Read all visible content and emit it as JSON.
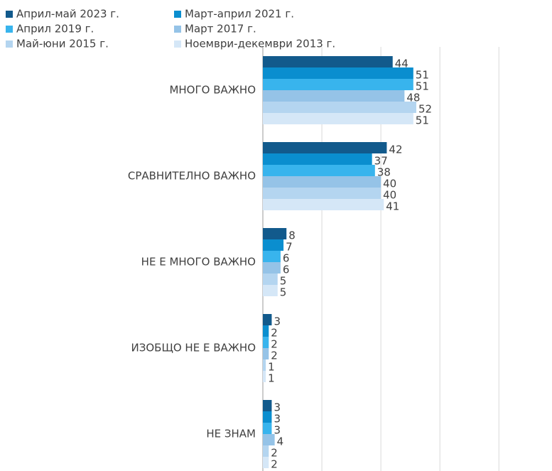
{
  "chart_data": {
    "type": "bar",
    "orientation": "horizontal",
    "categories": [
      "МНОГО ВАЖНО",
      "СРАВНИТЕЛНО ВАЖНО",
      "НЕ Е МНОГО ВАЖНО",
      "ИЗОБЩО НЕ Е ВАЖНО",
      "НЕ ЗНАМ"
    ],
    "series": [
      {
        "name": "Април-май 2023 г.",
        "color": "#125a8c",
        "values": [
          44,
          42,
          8,
          3,
          3
        ]
      },
      {
        "name": "Март-април 2021 г.",
        "color": "#0a8ecf",
        "values": [
          51,
          37,
          7,
          2,
          3
        ]
      },
      {
        "name": "Април 2019 г.",
        "color": "#38b4ed",
        "values": [
          51,
          38,
          6,
          2,
          3
        ]
      },
      {
        "name": "Март 2017 г.",
        "color": "#95c3e7",
        "values": [
          48,
          40,
          6,
          2,
          4
        ]
      },
      {
        "name": "Май-юни 2015 г.",
        "color": "#b4d5f0",
        "values": [
          52,
          40,
          5,
          1,
          2
        ]
      },
      {
        "name": "Ноември-декември 2013 г.",
        "color": "#d5e7f7",
        "values": [
          51,
          41,
          5,
          1,
          2
        ]
      }
    ],
    "xlim": [
      0,
      98
    ],
    "xticks": [
      0,
      20,
      40,
      60,
      80
    ],
    "grid": true,
    "legend": "top"
  }
}
